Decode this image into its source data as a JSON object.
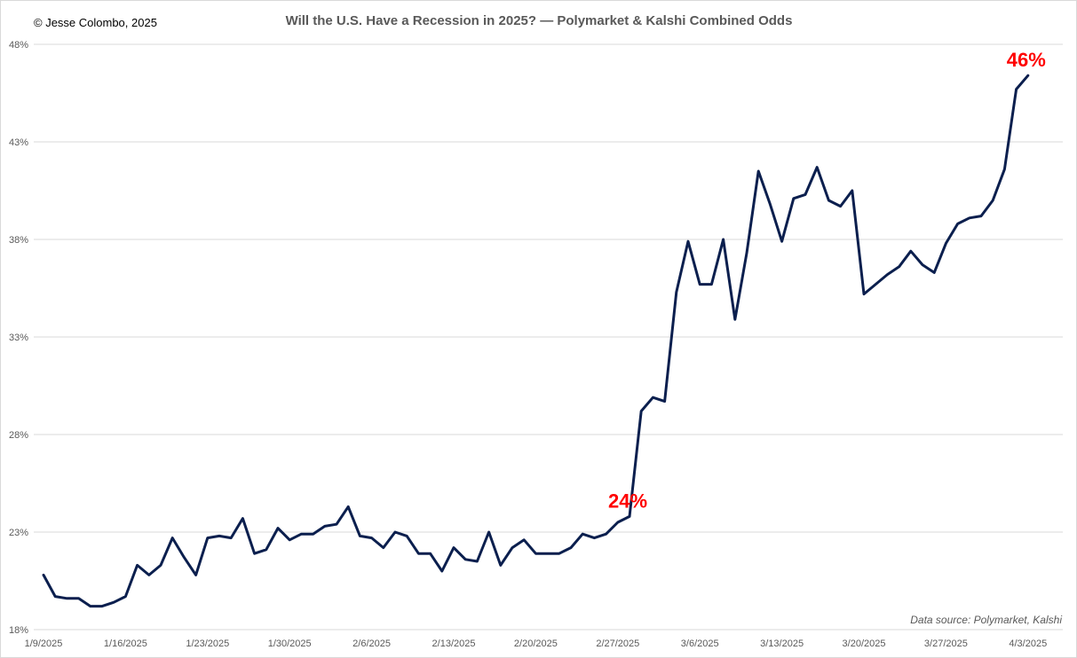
{
  "copyright": "© Jesse Colombo, 2025",
  "source": "Data source: Polymarket, Kalshi",
  "colors": {
    "line": "#0b1f4e",
    "annotation": "#ff0000",
    "grid": "#d9d9d9"
  },
  "chart_data": {
    "type": "line",
    "title": "Will the U.S. Have a Recession in 2025? — Polymarket & Kalshi Combined Odds",
    "xlabel": "",
    "ylabel": "",
    "grid": true,
    "ylim": [
      18,
      48
    ],
    "yticks": [
      18,
      23,
      28,
      33,
      38,
      43,
      48
    ],
    "ytick_labels": [
      "18%",
      "23%",
      "28%",
      "33%",
      "38%",
      "43%",
      "48%"
    ],
    "xticks": [
      "1/9/2025",
      "1/16/2025",
      "1/23/2025",
      "1/30/2025",
      "2/6/2025",
      "2/13/2025",
      "2/20/2025",
      "2/27/2025",
      "3/6/2025",
      "3/13/2025",
      "3/20/2025",
      "3/27/2025",
      "4/3/2025"
    ],
    "series": [
      {
        "values": [
          20.8,
          19.7,
          19.6,
          19.6,
          19.2,
          19.2,
          19.4,
          19.7,
          21.3,
          20.8,
          21.3,
          22.7,
          21.7,
          20.8,
          22.7,
          22.8,
          22.7,
          23.7,
          21.9,
          22.1,
          23.2,
          22.6,
          22.9,
          22.9,
          23.3,
          23.4,
          24.3,
          22.8,
          22.7,
          22.2,
          23.0,
          22.8,
          21.9,
          21.9,
          21.0,
          22.2,
          21.6,
          21.5,
          23.0,
          21.3,
          22.2,
          22.6,
          21.9,
          21.9,
          21.9,
          22.2,
          22.9,
          22.7,
          22.9,
          23.5,
          23.8,
          29.2,
          29.9,
          29.7,
          35.3,
          37.9,
          35.7,
          35.7,
          38.0,
          33.9,
          37.3,
          41.5,
          39.8,
          37.9,
          40.1,
          40.3,
          41.7,
          40.0,
          39.7,
          40.5,
          35.2,
          35.7,
          36.2,
          36.6,
          37.4,
          36.7,
          36.3,
          37.8,
          38.8,
          39.1,
          39.2,
          40.0,
          41.6,
          45.7,
          46.4
        ],
        "annotations": [
          {
            "label": "24%",
            "index": 50,
            "value": 24
          },
          {
            "label": "46%",
            "index": 84,
            "value": 46
          }
        ]
      }
    ]
  }
}
